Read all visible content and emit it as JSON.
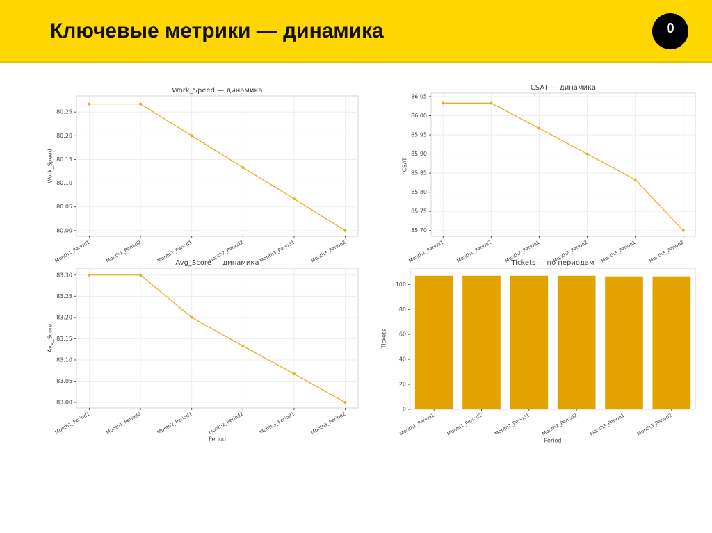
{
  "header": {
    "title": "Ключевые метрики — динамика",
    "badge": "0"
  },
  "chart_data": [
    {
      "type": "line",
      "title": "Work_Speed — динамика",
      "ylabel": "Work_Speed",
      "categories": [
        "Month1_Period1",
        "Month1_Period2",
        "Month2_Period1",
        "Month2_Period2",
        "Month3_Period1",
        "Month3_Period2"
      ],
      "values": [
        80.267,
        80.267,
        80.2,
        80.133,
        80.067,
        80.0
      ],
      "color": "#e8ad2a",
      "ylim": [
        79.988,
        80.284
      ],
      "yticks": [
        {
          "value": 80,
          "label": "80.00"
        },
        80.05,
        {
          "value": 80.1,
          "label": "80.10"
        },
        80.15,
        {
          "value": 80.2,
          "label": "80.20"
        },
        80.25
      ],
      "grid": true
    },
    {
      "type": "line",
      "title": "CSAT — динамика",
      "ylabel": "CSAT",
      "categories": [
        "Month1_Period1",
        "Month1_Period2",
        "Month2_Period1",
        "Month2_Period2",
        "Month3_Period1",
        "Month3_Period2"
      ],
      "values": [
        86.033,
        86.033,
        85.967,
        85.9,
        85.833,
        85.7
      ],
      "color": "#e8ad2a",
      "ylim": [
        85.685,
        86.059
      ],
      "yticks": [
        {
          "value": 85.7,
          "label": "85.70"
        },
        85.75,
        {
          "value": 85.8,
          "label": "85.80"
        },
        85.85,
        {
          "value": 85.9,
          "label": "85.90"
        },
        85.95,
        {
          "value": 86,
          "label": "86.00"
        },
        86.05
      ],
      "grid": true
    },
    {
      "type": "line",
      "title": "Avg_Score — динамика",
      "ylabel": "Avg_Score",
      "xlabel": "Period",
      "categories": [
        "Month1_Period1",
        "Month1_Period2",
        "Month2_Period1",
        "Month2_Period2",
        "Month3_Period1",
        "Month3_Period2"
      ],
      "values": [
        83.3,
        83.3,
        83.2,
        83.133,
        83.067,
        83.0
      ],
      "color": "#e8ad2a",
      "ylim": [
        82.987,
        83.316
      ],
      "yticks": [
        {
          "value": 83,
          "label": "83.00"
        },
        83.05,
        {
          "value": 83.1,
          "label": "83.10"
        },
        83.15,
        {
          "value": 83.2,
          "label": "83.20"
        },
        83.25,
        {
          "value": 83.3,
          "label": "83.30"
        }
      ],
      "grid": true
    },
    {
      "type": "bar",
      "title": "Tickets — по периодам",
      "ylabel": "Tickets",
      "xlabel": "Period",
      "categories": [
        "Month1_Period1",
        "Month1_Period2",
        "Month2_Period1",
        "Month2_Period2",
        "Month3_Period1",
        "Month3_Period2"
      ],
      "values": [
        107,
        107,
        107,
        107,
        106.5,
        106.5
      ],
      "color": "#e2a300",
      "ylim": [
        0,
        113
      ],
      "yticks": [
        0,
        20,
        40,
        60,
        80,
        100
      ],
      "grid": false
    }
  ]
}
